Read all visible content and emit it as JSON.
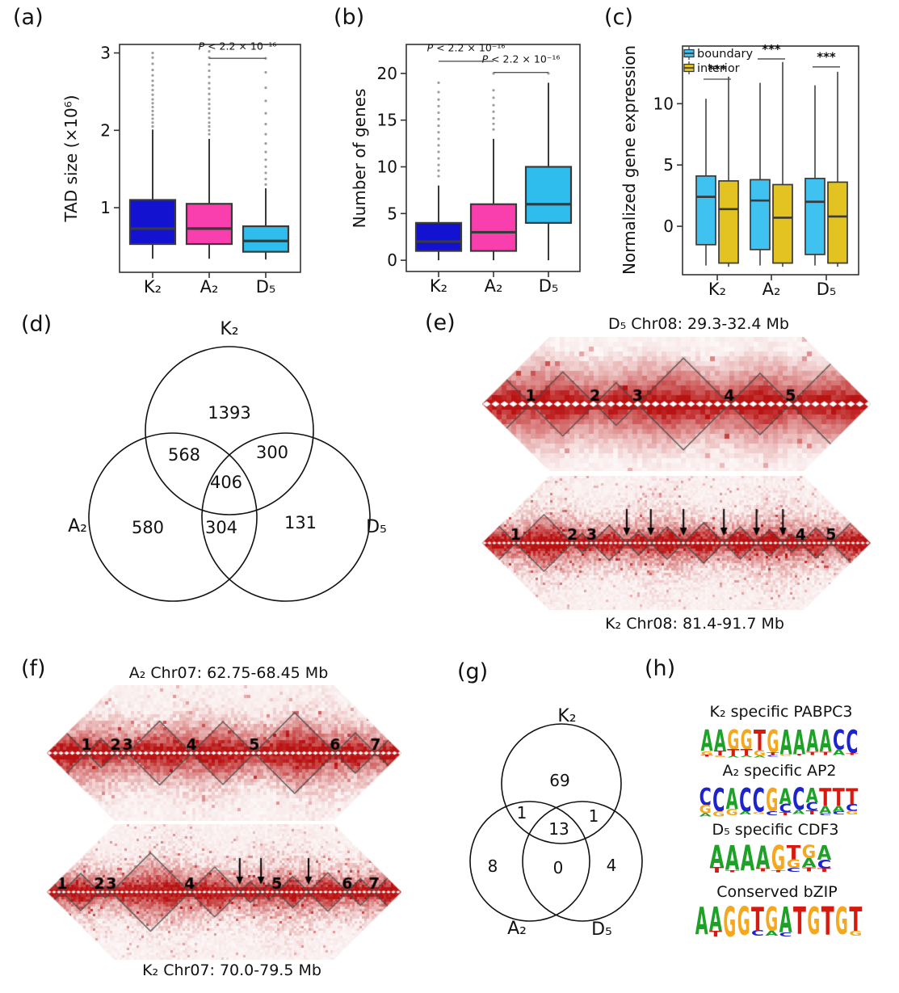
{
  "panel_labels": {
    "a": "(a)",
    "b": "(b)",
    "c": "(c)",
    "d": "(d)",
    "e": "(e)",
    "f": "(f)",
    "g": "(g)",
    "h": "(h)"
  },
  "colors": {
    "k2_box": "#1212d0",
    "a2_box": "#f93eae",
    "d5_box": "#2ebdec",
    "boundary": "#3fc2f0",
    "interior": "#e2c321",
    "box_stroke": "#3a3a3a",
    "outlier": "#9e9e9e",
    "sig_line": "#555555",
    "heat_deep": "#b91414"
  },
  "chart_data": [
    {
      "id": "a",
      "type": "boxplot",
      "ylabel": "TAD size (×10⁶)",
      "categories": [
        "K₂",
        "A₂",
        "D₅"
      ],
      "ylim": [
        0.165,
        3.11
      ],
      "yticks": [
        1,
        2,
        3
      ],
      "boxes": [
        {
          "category": "K₂",
          "color": "#1212d0",
          "low": 0.34,
          "q1": 0.53,
          "median": 0.73,
          "q3": 1.1,
          "high": 2.01,
          "outliers": [
            2.05,
            2.1,
            2.15,
            2.2,
            2.25,
            2.3,
            2.35,
            2.4,
            2.46,
            2.52,
            2.58,
            2.64,
            2.71,
            2.78,
            2.86,
            2.94,
            3.0
          ]
        },
        {
          "category": "A₂",
          "color": "#f93eae",
          "low": 0.34,
          "q1": 0.53,
          "median": 0.73,
          "q3": 1.05,
          "high": 1.89,
          "outliers": [
            1.95,
            2.0,
            2.05,
            2.1,
            2.16,
            2.22,
            2.28,
            2.34,
            2.4,
            2.47,
            2.54,
            2.61,
            2.69,
            2.77,
            2.85,
            2.94,
            3.02
          ]
        },
        {
          "category": "D₅",
          "color": "#2ebdec",
          "low": 0.33,
          "q1": 0.43,
          "median": 0.57,
          "q3": 0.76,
          "high": 1.25,
          "outliers": [
            1.3,
            1.37,
            1.45,
            1.53,
            1.62,
            1.72,
            1.83,
            1.95,
            2.08,
            2.22,
            2.38,
            2.55,
            2.75,
            2.93
          ]
        }
      ],
      "significance": [
        {
          "from": "A₂",
          "to": "D₅",
          "line_y": 2.93,
          "label_y": 3.04,
          "text": "P < 2.2 × 10⁻¹⁶"
        }
      ]
    },
    {
      "id": "b",
      "type": "boxplot",
      "ylabel": "Number of genes",
      "categories": [
        "K₂",
        "A₂",
        "D₅"
      ],
      "ylim": [
        -1.2,
        23.1
      ],
      "yticks": [
        0,
        5,
        10,
        15,
        20
      ],
      "boxes": [
        {
          "category": "K₂",
          "color": "#1212d0",
          "low": 0,
          "q1": 1,
          "median": 2,
          "q3": 4,
          "high": 8,
          "outliers": [
            9,
            9.6,
            10.2,
            10.9,
            11.6,
            12.3,
            13,
            13.7,
            14.4,
            15.1,
            15.8,
            16.5,
            17.2,
            18,
            19
          ]
        },
        {
          "category": "A₂",
          "color": "#f93eae",
          "low": 0,
          "q1": 1,
          "median": 3,
          "q3": 6,
          "high": 13,
          "outliers": [
            14,
            14.6,
            15.2,
            15.9,
            16.6,
            17.4,
            18.2,
            20
          ]
        },
        {
          "category": "D₅",
          "color": "#2ebdec",
          "low": 0,
          "q1": 4,
          "median": 6,
          "q3": 10,
          "high": 19,
          "outliers": [
            20
          ]
        }
      ],
      "significance": [
        {
          "from": "K₂",
          "to": "A₂",
          "line_y": 21.3,
          "label_y": 22.35,
          "text": "P < 2.2 × 10⁻¹⁶"
        },
        {
          "from": "A₂",
          "to": "D₅",
          "line_y": 20.1,
          "label_y": 21.15,
          "text": "P < 2.2 × 10⁻¹⁶"
        }
      ]
    },
    {
      "id": "c",
      "type": "grouped-boxplot",
      "ylabel": "Normalized gene expression",
      "categories": [
        "K₂",
        "A₂",
        "D₅"
      ],
      "legend": [
        {
          "label": "boundary",
          "color": "#3fc2f0"
        },
        {
          "label": "interior",
          "color": "#e2c321"
        }
      ],
      "ylim": [
        -3.95,
        14.7
      ],
      "yticks": [
        0,
        5,
        10
      ],
      "groups": [
        {
          "category": "K₂",
          "boundary": {
            "low": -3.2,
            "q1": -1.5,
            "median": 2.4,
            "q3": 4.1,
            "high": 10.4
          },
          "interior": {
            "low": -3.3,
            "q1": -3.0,
            "median": 1.4,
            "q3": 3.7,
            "high": 12.2
          },
          "sig": {
            "line_y": 12.0,
            "stars_y": 12.8,
            "text": "***"
          }
        },
        {
          "category": "A₂",
          "boundary": {
            "low": -3.2,
            "q1": -1.9,
            "median": 2.1,
            "q3": 3.8,
            "high": 11.7
          },
          "interior": {
            "low": -3.3,
            "q1": -3.0,
            "median": 0.7,
            "q3": 3.4,
            "high": 13.4
          },
          "sig": {
            "line_y": 13.65,
            "stars_y": 14.45,
            "text": "***"
          }
        },
        {
          "category": "D₅",
          "boundary": {
            "low": -3.2,
            "q1": -2.3,
            "median": 2.0,
            "q3": 3.9,
            "high": 11.5
          },
          "interior": {
            "low": -3.3,
            "q1": -3.0,
            "median": 0.8,
            "q3": 3.6,
            "high": 12.6
          },
          "sig": {
            "line_y": 13.0,
            "stars_y": 13.8,
            "text": "***"
          }
        }
      ]
    }
  ],
  "venn_d": {
    "set_labels": [
      "K₂",
      "A₂",
      "D₅"
    ],
    "counts": {
      "k": "1393",
      "ka": "568",
      "kd": "300",
      "kad": "406",
      "a": "580",
      "ad": "304",
      "d": "131"
    }
  },
  "venn_g": {
    "set_labels": [
      "K₂",
      "A₂",
      "D₅"
    ],
    "counts": {
      "k": "69",
      "ka": "1",
      "kd": "1",
      "kad": "13",
      "a": "8",
      "ad": "0",
      "d": "4"
    }
  },
  "heatmaps": {
    "e_top": {
      "title": "D₅ Chr08: 29.3-32.4 Mb",
      "tad_boundaries": [
        -0.06,
        0.125,
        0.29,
        0.4,
        0.636,
        0.794,
        1.06
      ],
      "tad_labels": [
        {
          "text": "1",
          "f": 0.125
        },
        {
          "text": "2",
          "f": 0.29
        },
        {
          "text": "3",
          "f": 0.4
        },
        {
          "text": "4",
          "f": 0.636
        },
        {
          "text": "5",
          "f": 0.794
        }
      ],
      "arrows": []
    },
    "e_bottom": {
      "title": "K₂ Chr08: 81.4-91.7 Mb",
      "tad_boundaries": [
        -0.05,
        0.086,
        0.232,
        0.282,
        0.372,
        0.434,
        0.518,
        0.622,
        0.706,
        0.774,
        0.82,
        0.898,
        1.05
      ],
      "tad_labels": [
        {
          "text": "1",
          "f": 0.086
        },
        {
          "text": "2",
          "f": 0.232
        },
        {
          "text": "3",
          "f": 0.282
        },
        {
          "text": "4",
          "f": 0.82
        },
        {
          "text": "5",
          "f": 0.898
        }
      ],
      "arrows": [
        0.372,
        0.434,
        0.518,
        0.622,
        0.706,
        0.774
      ]
    },
    "f_top": {
      "title": "A₂ Chr07: 62.75-68.45 Mb",
      "tad_boundaries": [
        -0.04,
        0.112,
        0.194,
        0.228,
        0.408,
        0.585,
        0.813,
        0.927,
        1.04
      ],
      "tad_labels": [
        {
          "text": "1",
          "f": 0.112
        },
        {
          "text": "2",
          "f": 0.194
        },
        {
          "text": "3",
          "f": 0.228
        },
        {
          "text": "4",
          "f": 0.408
        },
        {
          "text": "5",
          "f": 0.585
        },
        {
          "text": "6",
          "f": 0.813
        },
        {
          "text": "7",
          "f": 0.927
        }
      ],
      "arrows": []
    },
    "f_bottom": {
      "title": "K₂ Chr07: 70.0-79.5 Mb",
      "tad_boundaries": [
        -0.03,
        0.043,
        0.148,
        0.182,
        0.403,
        0.544,
        0.604,
        0.649,
        0.738,
        0.847,
        0.922,
        1.03
      ],
      "tad_labels": [
        {
          "text": "1",
          "f": 0.043
        },
        {
          "text": "2",
          "f": 0.148
        },
        {
          "text": "3",
          "f": 0.182
        },
        {
          "text": "4",
          "f": 0.403
        },
        {
          "text": "5",
          "f": 0.649
        },
        {
          "text": "6",
          "f": 0.847
        },
        {
          "text": "7",
          "f": 0.922
        }
      ],
      "arrows": [
        0.544,
        0.604,
        0.738
      ]
    }
  },
  "logos": {
    "letter_colors": {
      "A": "#1ea127",
      "C": "#1d24cf",
      "G": "#f5a71d",
      "T": "#d8190f"
    },
    "items": [
      {
        "title": "K₂ specific PABPC3",
        "consensus": "AAGGTGAAAACC",
        "stacks": [
          [
            [
              "A",
              0.78
            ],
            [
              "G",
              0.14
            ],
            [
              "T",
              0.07
            ]
          ],
          [
            [
              "A",
              0.78
            ],
            [
              "T",
              0.16
            ],
            [
              "G",
              0.06
            ]
          ],
          [
            [
              "G",
              0.72
            ],
            [
              "T",
              0.24
            ],
            [
              "A",
              0.06
            ]
          ],
          [
            [
              "G",
              0.72
            ],
            [
              "T",
              0.22
            ],
            [
              "A",
              0.06
            ]
          ],
          [
            [
              "T",
              0.75
            ],
            [
              "G",
              0.2
            ],
            [
              "A",
              0.06
            ]
          ],
          [
            [
              "G",
              0.82
            ],
            [
              "T",
              0.1
            ],
            [
              "C",
              0.06
            ]
          ],
          [
            [
              "A",
              0.9
            ],
            [
              "G",
              0.05
            ]
          ],
          [
            [
              "A",
              0.88
            ],
            [
              "T",
              0.06
            ]
          ],
          [
            [
              "A",
              0.8
            ],
            [
              "T",
              0.12
            ]
          ],
          [
            [
              "A",
              0.8
            ],
            [
              "T",
              0.12
            ]
          ],
          [
            [
              "C",
              0.72
            ],
            [
              "A",
              0.2
            ]
          ],
          [
            [
              "C",
              0.85
            ],
            [
              "T",
              0.07
            ]
          ]
        ]
      },
      {
        "title": "A₂ specific AP2",
        "consensus": "CCACCGACATTT",
        "stacks": [
          [
            [
              "C",
              0.6
            ],
            [
              "G",
              0.28
            ],
            [
              "A",
              0.1
            ]
          ],
          [
            [
              "C",
              0.8
            ],
            [
              "G",
              0.18
            ]
          ],
          [
            [
              "A",
              0.72
            ],
            [
              "G",
              0.22
            ]
          ],
          [
            [
              "C",
              0.82
            ],
            [
              "A",
              0.1
            ]
          ],
          [
            [
              "C",
              0.82
            ],
            [
              "G",
              0.08
            ]
          ],
          [
            [
              "G",
              0.8
            ],
            [
              "C",
              0.14
            ]
          ],
          [
            [
              "A",
              0.55
            ],
            [
              "C",
              0.3
            ],
            [
              "T",
              0.1
            ]
          ],
          [
            [
              "C",
              0.75
            ],
            [
              "A",
              0.15
            ]
          ],
          [
            [
              "A",
              0.5
            ],
            [
              "C",
              0.28
            ],
            [
              "T",
              0.14
            ]
          ],
          [
            [
              "T",
              0.62
            ],
            [
              "A",
              0.25
            ],
            [
              "C",
              0.08
            ]
          ],
          [
            [
              "T",
              0.62
            ],
            [
              "A",
              0.2
            ],
            [
              "C",
              0.1
            ]
          ],
          [
            [
              "T",
              0.55
            ],
            [
              "C",
              0.25
            ],
            [
              "G",
              0.12
            ]
          ]
        ]
      },
      {
        "title": "D₅ specific CDF3",
        "consensus": "AAAAGTGA",
        "stacks": [
          [
            [
              "A",
              0.75
            ],
            [
              "T",
              0.2
            ]
          ],
          [
            [
              "A",
              0.85
            ],
            [
              "T",
              0.08
            ]
          ],
          [
            [
              "A",
              0.88
            ]
          ],
          [
            [
              "A",
              0.8
            ],
            [
              "T",
              0.1
            ]
          ],
          [
            [
              "G",
              0.85
            ],
            [
              "T",
              0.08
            ]
          ],
          [
            [
              "T",
              0.5
            ],
            [
              "G",
              0.28
            ],
            [
              "C",
              0.14
            ]
          ],
          [
            [
              "G",
              0.45
            ],
            [
              "A",
              0.3
            ],
            [
              "T",
              0.15
            ]
          ],
          [
            [
              "A",
              0.5
            ],
            [
              "C",
              0.3
            ],
            [
              "T",
              0.12
            ]
          ]
        ]
      },
      {
        "title": "Conserved bZIP",
        "consensus": "AAGGTGATGTGT",
        "stacks": [
          [
            [
              "A",
              0.85
            ]
          ],
          [
            [
              "A",
              0.75
            ],
            [
              "T",
              0.18
            ]
          ],
          [
            [
              "G",
              0.92
            ]
          ],
          [
            [
              "G",
              0.88
            ]
          ],
          [
            [
              "T",
              0.72
            ],
            [
              "C",
              0.18
            ]
          ],
          [
            [
              "G",
              0.75
            ],
            [
              "A",
              0.15
            ]
          ],
          [
            [
              "A",
              0.8
            ],
            [
              "C",
              0.12
            ]
          ],
          [
            [
              "T",
              0.85
            ]
          ],
          [
            [
              "G",
              0.85
            ]
          ],
          [
            [
              "T",
              0.88
            ]
          ],
          [
            [
              "G",
              0.85
            ]
          ],
          [
            [
              "T",
              0.75
            ],
            [
              "G",
              0.15
            ]
          ]
        ]
      }
    ]
  }
}
